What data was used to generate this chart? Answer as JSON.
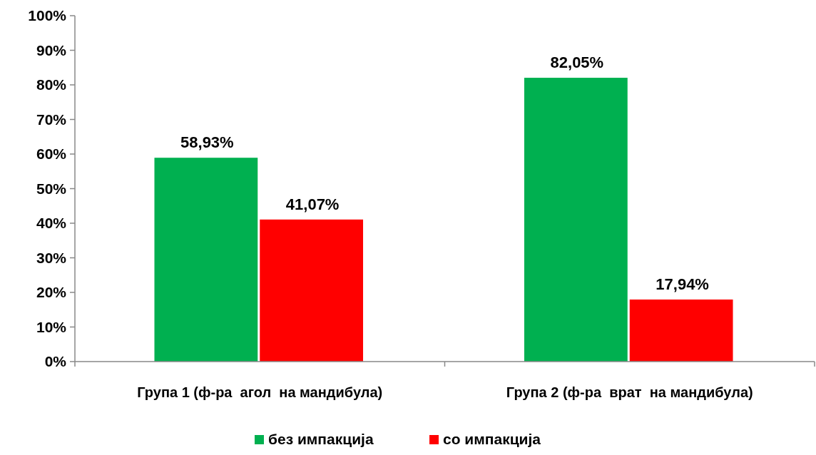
{
  "chart_data": {
    "type": "bar",
    "categories": [
      "Група 1 (ф-ра  агол  на мандибула)",
      "Група 2 (ф-ра  врат  на мандибула)"
    ],
    "series": [
      {
        "name": "без импакција",
        "color": "#00b050",
        "values": [
          58.93,
          82.05
        ],
        "value_labels": [
          "58,93%",
          "82,05%"
        ]
      },
      {
        "name": "со импакција",
        "color": "#ff0000",
        "values": [
          41.07,
          17.94
        ],
        "value_labels": [
          "41,07%",
          "17,94%"
        ]
      }
    ],
    "ylim": [
      0,
      100
    ],
    "yticks": [
      {
        "value": 0,
        "label": "0%"
      },
      {
        "value": 10,
        "label": "10%"
      },
      {
        "value": 20,
        "label": "20%"
      },
      {
        "value": 30,
        "label": "30%"
      },
      {
        "value": 40,
        "label": "40%"
      },
      {
        "value": 50,
        "label": "50%"
      },
      {
        "value": 60,
        "label": "60%"
      },
      {
        "value": 70,
        "label": "70%"
      },
      {
        "value": 80,
        "label": "80%"
      },
      {
        "value": 90,
        "label": "90%"
      },
      {
        "value": 100,
        "label": "100%"
      }
    ],
    "grid": false,
    "legend": "bottom"
  }
}
